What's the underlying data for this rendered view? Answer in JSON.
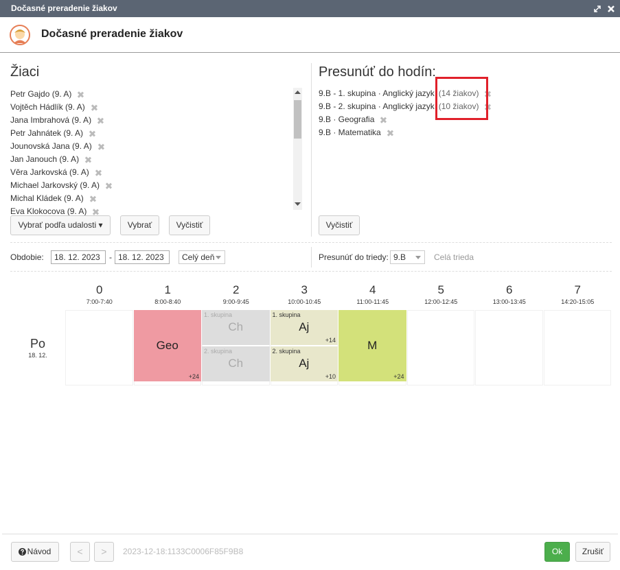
{
  "title_bar": {
    "title": "Dočasné preradenie žiakov"
  },
  "header": {
    "title": "Dočasné preradenie žiakov"
  },
  "students": {
    "heading": "Žiaci",
    "items": [
      "Petr Gajdo (9. A)",
      "Vojtěch Hádlík (9. A)",
      "Jana Imbrahová (9. A)",
      "Petr Jahnátek (9. A)",
      "Jounovská Jana (9. A)",
      "Jan Janouch (9. A)",
      "Věra Jarkovská (9. A)",
      "Michael Jarkovský (9. A)",
      "Michal Kládek (9. A)",
      "Eva Klokocova (9. A)"
    ],
    "buttons": [
      "Vybrať podľa udalosti ▾",
      "Vybrať",
      "Vyčistiť"
    ]
  },
  "targets": {
    "heading": "Presunúť do hodín:",
    "items": [
      {
        "text": "9.B - 1. skupina · Anglický jazyk",
        "count": "(14 žiakov)"
      },
      {
        "text": "9.B - 2. skupina · Anglický jazyk",
        "count": "(10 žiakov)"
      },
      {
        "text": "9.B · Geografia"
      },
      {
        "text": "9.B · Matematika"
      }
    ],
    "button": "Vyčistiť"
  },
  "filters": {
    "period_label": "Obdobie:",
    "date_from": "18. 12. 2023",
    "separator": "-",
    "date_to": "18. 12. 2023",
    "day_part": "Celý deň",
    "class_label": "Presunúť do triedy:",
    "class_value": "9.B",
    "class_note": "Celá trieda"
  },
  "timetable": {
    "day": {
      "name": "Po",
      "date": "18. 12."
    },
    "periods": [
      {
        "number": "0",
        "time": "7:00-7:40"
      },
      {
        "number": "1",
        "time": "8:00-8:40",
        "lesson": {
          "subject": "Geo",
          "count": "+24",
          "color": "#ef9aa2"
        }
      },
      {
        "number": "2",
        "time": "9:00-9:45",
        "groups": [
          {
            "label": "1. skupina",
            "subject": "Ch",
            "color": "#dddddd"
          },
          {
            "label": "2. skupina",
            "subject": "Ch",
            "color": "#dddddd"
          }
        ]
      },
      {
        "number": "3",
        "time": "10:00-10:45",
        "groups": [
          {
            "label": "1. skupina",
            "subject": "Aj",
            "count": "+14",
            "color": "#e8e7cb"
          },
          {
            "label": "2. skupina",
            "subject": "Aj",
            "count": "+10",
            "color": "#e8e7cb"
          }
        ]
      },
      {
        "number": "4",
        "time": "11:00-11:45",
        "lesson": {
          "subject": "M",
          "count": "+24",
          "color": "#d3e17a"
        }
      },
      {
        "number": "5",
        "time": "12:00-12:45"
      },
      {
        "number": "6",
        "time": "13:00-13:45"
      },
      {
        "number": "7",
        "time": "14:20-15:05"
      }
    ]
  },
  "footer": {
    "help": "Návod",
    "prev": "<",
    "next": ">",
    "id": "2023-12-18:1133C0006F85F9B8",
    "ok": "Ok",
    "cancel": "Zrušiť"
  }
}
